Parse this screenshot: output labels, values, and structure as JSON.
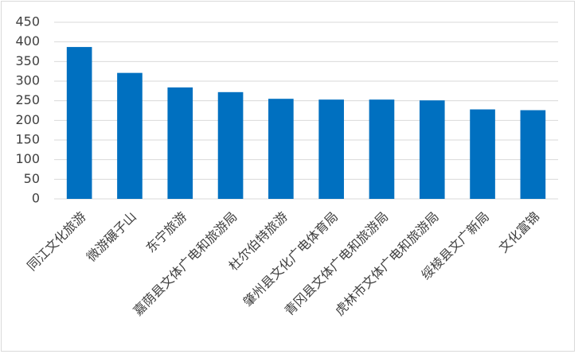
{
  "chart_data": {
    "type": "bar",
    "categories": [
      "同江文化旅游",
      "微游碾子山",
      "东宁旅游",
      "嘉荫县文体广电和旅游局",
      "杜尔伯特旅游",
      "肇州县文化广电体育局",
      "青冈县文体广电和旅游局",
      "虎林市文体广电和旅游局",
      "绥棱县文广新局",
      "文化富锦"
    ],
    "values": [
      387,
      321,
      284,
      272,
      255,
      253,
      253,
      251,
      228,
      226
    ],
    "color": "#0070c0",
    "ylim": [
      0,
      450
    ],
    "yticks": [
      0,
      50,
      100,
      150,
      200,
      250,
      300,
      350,
      400,
      450
    ],
    "grid": true
  }
}
